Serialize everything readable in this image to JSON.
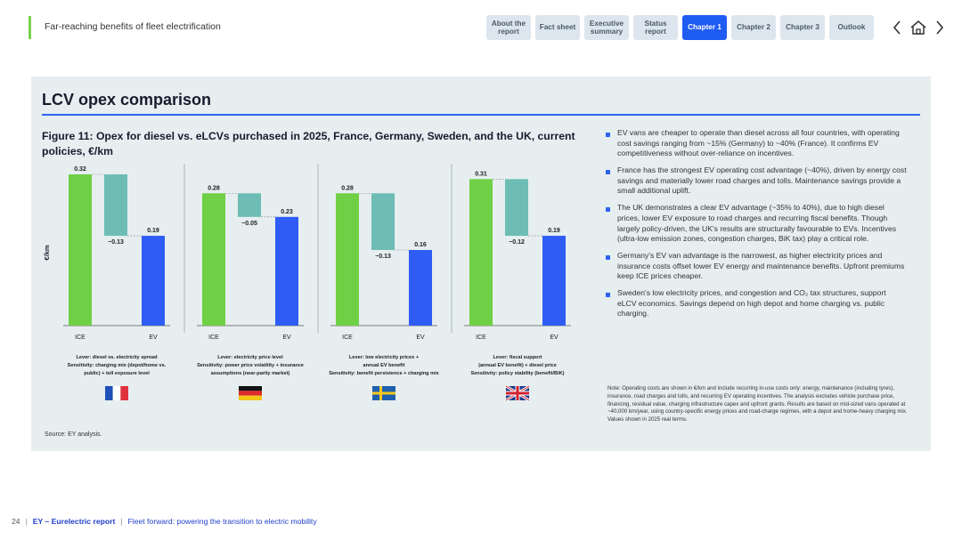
{
  "header": {
    "title": "Far-reaching benefits of fleet electrification",
    "nav": [
      {
        "label": "About the report",
        "active": false
      },
      {
        "label": "Fact sheet",
        "active": false
      },
      {
        "label": "Executive summary",
        "active": false
      },
      {
        "label": "Status report",
        "active": false
      },
      {
        "label": "Chapter 1",
        "active": true
      },
      {
        "label": "Chapter 2",
        "active": false
      },
      {
        "label": "Chapter 3",
        "active": false
      },
      {
        "label": "Outlook",
        "active": false
      }
    ],
    "icons": [
      "chevron-left-icon",
      "home-icon",
      "chevron-right-icon"
    ]
  },
  "panel": {
    "title": "LCV opex comparison",
    "figure_title": "Figure 11: Opex for diesel vs. eLCVs purchased in 2025, France, Germany, Sweden, and the UK, current policies, €/km",
    "source": "Source: EY analysis."
  },
  "chart_data": {
    "type": "bar",
    "subtype": "waterfall",
    "ylabel": "€/km",
    "ylim": [
      0,
      0.32
    ],
    "categories": [
      "ICE",
      "",
      "EV"
    ],
    "colors": {
      "ice": "#6fd045",
      "delta": "#6dbdb5",
      "ev": "#2e5cf5"
    },
    "panels": [
      {
        "country": "France",
        "flag": "france-flag-icon",
        "ice": 0.32,
        "delta": -0.13,
        "ev": 0.19,
        "ice_label": "0.32",
        "delta_label": "−0.13",
        "ev_label": "0.19",
        "lever_lines": [
          "Lever: diesel vs. electricity spread",
          "Sensitivity: charging mix (depot/home vs.",
          "public) + toll exposure level"
        ]
      },
      {
        "country": "Germany",
        "flag": "germany-flag-icon",
        "ice": 0.28,
        "delta": -0.05,
        "ev": 0.23,
        "ice_label": "0.28",
        "delta_label": "−0.05",
        "ev_label": "0.23",
        "lever_lines": [
          "Lever: electricity price level",
          "Sensitivity: power price volatility + insurance",
          "assumptions (near-parity market)"
        ]
      },
      {
        "country": "Sweden",
        "flag": "sweden-flag-icon",
        "ice": 0.28,
        "delta": -0.13,
        "ev": 0.16,
        "ice_label": "0.28",
        "delta_label": "−0.13",
        "ev_label": "0.16",
        "lever_lines": [
          "Lever: low electricity prices +",
          "annual EV benefit",
          "Sensitivity: benefit persistence + charging mix"
        ]
      },
      {
        "country": "UK",
        "flag": "uk-flag-icon",
        "ice": 0.31,
        "delta": -0.12,
        "ev": 0.19,
        "ice_label": "0.31",
        "delta_label": "−0.12",
        "ev_label": "0.19",
        "lever_lines": [
          "Lever: fiscal support",
          "(annual EV benefit) + diesel price",
          "Sensitivity: policy stability (benefit/BiK)"
        ]
      }
    ]
  },
  "bullets": [
    {
      "text": "EV vans are cheaper to operate than diesel across all four countries, with operating cost savings ranging from ~15% (Germany) to ~40% (France). It confirms EV competitiveness without over-reliance on incentives."
    },
    {
      "text": "France has the strongest EV operating cost advantage (~40%), driven by energy cost savings and materially lower road charges and tolls. Maintenance savings provide a small additional uplift."
    },
    {
      "text": "The UK demonstrates a clear EV advantage (~35% to 40%), due to high diesel prices, lower EV exposure to road charges and recurring fiscal benefits. Though largely policy-driven, the UK's results are structurally favourable to EVs. Incentives (ultra-low emission zones, congestion charges, BiK tax) play a critical role."
    },
    {
      "text": "Germany's EV van advantage is the narrowest, as higher electricity prices and insurance costs offset lower EV energy and maintenance benefits. Upfront premiums keep ICE prices cheaper."
    },
    {
      "text": "Sweden's low electricity prices, and congestion and CO₂ tax structures, support eLCV economics. Savings depend on high depot and home charging vs. public charging."
    }
  ],
  "note": "Note: Operating costs are shown in €/km and include recurring in-use costs only: energy, maintenance (including tyres), insurance, road charges and tolls, and recurring EV operating incentives. The analysis excludes vehicle purchase price, financing, residual value, charging infrastructure capex and upfront grants. Results are based on mid-sized vans operated at ~40,000 km/year, using country-specific energy prices and road-charge regimes, with a depot and home-heavy charging mix. Values shown in 2025 real terms.",
  "footer": {
    "page": "24",
    "brand": "EY – Eurelectric report",
    "subtitle": "Fleet forward: powering the transition to electric mobility"
  }
}
